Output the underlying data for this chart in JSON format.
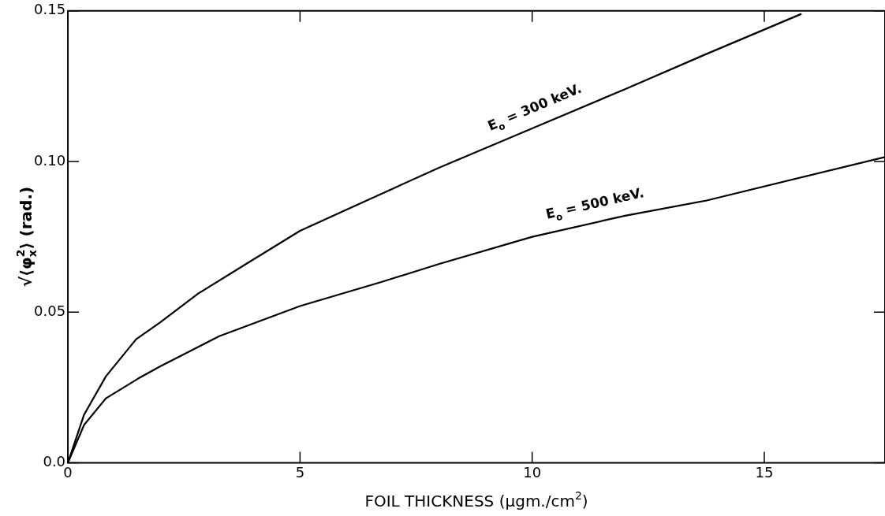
{
  "chart_data": {
    "type": "line",
    "xlabel": "FOIL THICKNESS (μgm./cm$^{2}$)",
    "ylabel": "√⟨φ$_{x}$$^{2}$⟩ (rad.)",
    "xlim": [
      0,
      17.6
    ],
    "xticks": [
      0,
      5,
      10,
      15
    ],
    "ylim": [
      0,
      0.15
    ],
    "yticks": [
      {
        "value": 0,
        "label": "0.0"
      },
      0.05,
      {
        "value": 0.1,
        "label": "0.10"
      },
      0.15
    ],
    "grid": false,
    "legend": false,
    "marker": "none",
    "line_style": "solid",
    "series": [
      {
        "color": "#000000",
        "x": [
          0,
          0.35,
          0.82,
          1.47,
          1.99,
          2.79,
          3.84,
          5,
          7,
          8,
          10,
          12,
          13.74,
          15.8
        ],
        "values": [
          0,
          0.016,
          0.0287,
          0.041,
          0.0466,
          0.056,
          0.066,
          0.077,
          0.091,
          0.098,
          0.111,
          0.124,
          0.1356,
          0.149
        ]
      },
      {
        "color": "#000000",
        "x": [
          0,
          0.35,
          0.82,
          1.52,
          1.99,
          3.26,
          5,
          6.75,
          8,
          10,
          12,
          13.74,
          17.6
        ],
        "values": [
          0,
          0.0126,
          0.0214,
          0.028,
          0.032,
          0.042,
          0.052,
          0.06,
          0.066,
          0.075,
          0.082,
          0.087,
          0.1015
        ]
      }
    ],
    "annotations": [
      "E$_{o}$ = 300 keV.",
      "E$_{o}$ = 500 keV."
    ]
  }
}
